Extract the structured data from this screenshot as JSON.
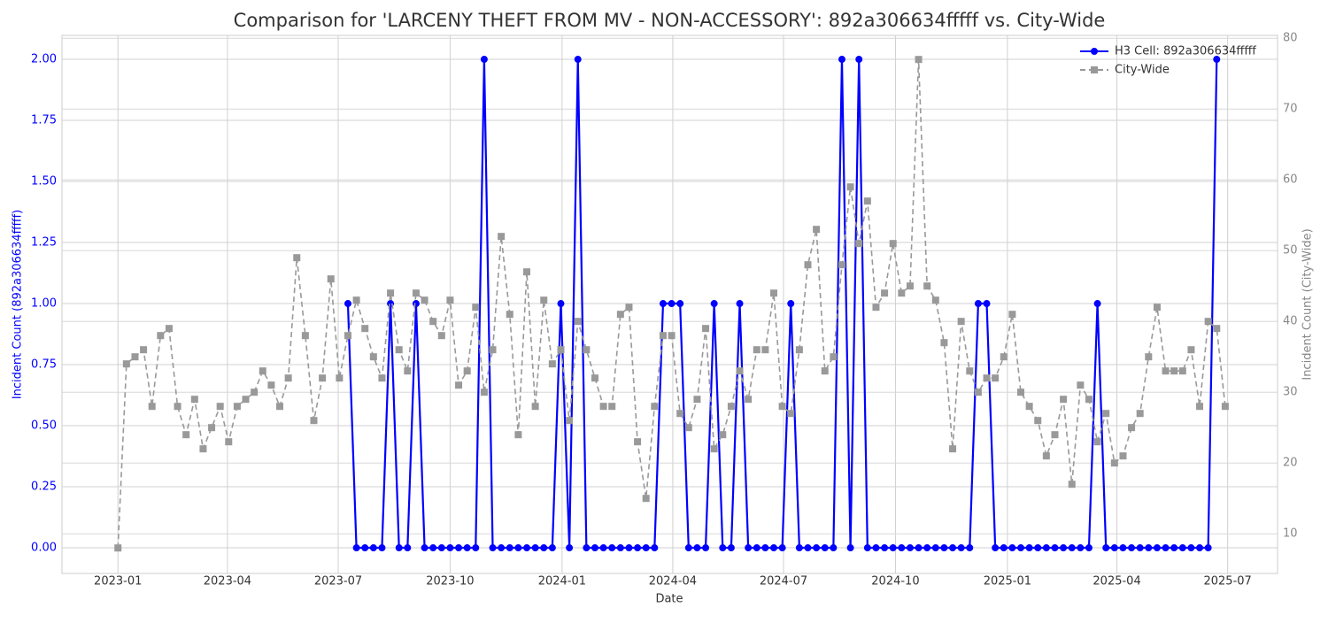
{
  "chart_data": {
    "type": "line",
    "title": "Comparison for 'LARCENY THEFT FROM MV - NON-ACCESSORY': 892a306634fffff vs. City-Wide",
    "x_label": "Date",
    "y_label": "Incident Count (892a306634fffff)",
    "y2_label": "Incident Count (City-Wide)",
    "x": [
      "2023-01-01",
      "2023-01-08",
      "2023-01-15",
      "2023-01-22",
      "2023-01-29",
      "2023-02-05",
      "2023-02-12",
      "2023-02-19",
      "2023-02-26",
      "2023-03-05",
      "2023-03-12",
      "2023-03-19",
      "2023-03-26",
      "2023-04-02",
      "2023-04-09",
      "2023-04-16",
      "2023-04-23",
      "2023-04-30",
      "2023-05-07",
      "2023-05-14",
      "2023-05-21",
      "2023-05-28",
      "2023-06-04",
      "2023-06-11",
      "2023-06-18",
      "2023-06-25",
      "2023-07-02",
      "2023-07-09",
      "2023-07-16",
      "2023-07-23",
      "2023-07-30",
      "2023-08-06",
      "2023-08-13",
      "2023-08-20",
      "2023-08-27",
      "2023-09-03",
      "2023-09-10",
      "2023-09-17",
      "2023-09-24",
      "2023-10-01",
      "2023-10-08",
      "2023-10-15",
      "2023-10-22",
      "2023-10-29",
      "2023-11-05",
      "2023-11-12",
      "2023-11-19",
      "2023-11-26",
      "2023-12-03",
      "2023-12-10",
      "2023-12-17",
      "2023-12-24",
      "2023-12-31",
      "2024-01-07",
      "2024-01-14",
      "2024-01-21",
      "2024-01-28",
      "2024-02-04",
      "2024-02-11",
      "2024-02-18",
      "2024-02-25",
      "2024-03-03",
      "2024-03-10",
      "2024-03-17",
      "2024-03-24",
      "2024-03-31",
      "2024-04-07",
      "2024-04-14",
      "2024-04-21",
      "2024-04-28",
      "2024-05-05",
      "2024-05-12",
      "2024-05-19",
      "2024-05-26",
      "2024-06-02",
      "2024-06-09",
      "2024-06-16",
      "2024-06-23",
      "2024-06-30",
      "2024-07-07",
      "2024-07-14",
      "2024-07-21",
      "2024-07-28",
      "2024-08-04",
      "2024-08-11",
      "2024-08-18",
      "2024-08-25",
      "2024-09-01",
      "2024-09-08",
      "2024-09-15",
      "2024-09-22",
      "2024-09-29",
      "2024-10-06",
      "2024-10-13",
      "2024-10-20",
      "2024-10-27",
      "2024-11-03",
      "2024-11-10",
      "2024-11-17",
      "2024-11-24",
      "2024-12-01",
      "2024-12-08",
      "2024-12-15",
      "2024-12-22",
      "2024-12-29",
      "2025-01-05",
      "2025-01-12",
      "2025-01-19",
      "2025-01-26",
      "2025-02-02",
      "2025-02-09",
      "2025-02-16",
      "2025-02-23",
      "2025-03-02",
      "2025-03-09",
      "2025-03-16",
      "2025-03-23",
      "2025-03-30",
      "2025-04-06",
      "2025-04-13",
      "2025-04-20",
      "2025-04-27",
      "2025-05-04",
      "2025-05-11",
      "2025-05-18",
      "2025-05-25",
      "2025-06-01",
      "2025-06-08",
      "2025-06-15",
      "2025-06-22",
      "2025-06-29"
    ],
    "series": [
      {
        "name": "H3 Cell: 892a306634fffff",
        "color": "#0000ff",
        "style": "solid",
        "marker": "circle",
        "values": [
          null,
          null,
          null,
          null,
          null,
          null,
          null,
          null,
          null,
          null,
          null,
          null,
          null,
          null,
          null,
          null,
          null,
          null,
          null,
          null,
          null,
          null,
          null,
          null,
          null,
          null,
          null,
          1,
          0,
          0,
          0,
          0,
          1,
          0,
          0,
          1,
          0,
          0,
          0,
          0,
          0,
          0,
          0,
          2,
          0,
          0,
          0,
          0,
          0,
          0,
          0,
          0,
          1,
          0,
          2,
          0,
          0,
          0,
          0,
          0,
          0,
          0,
          0,
          0,
          1,
          1,
          1,
          0,
          0,
          0,
          1,
          0,
          0,
          1,
          0,
          0,
          0,
          0,
          0,
          1,
          0,
          0,
          0,
          0,
          0,
          2,
          0,
          2,
          0,
          0,
          0,
          0,
          0,
          0,
          0,
          0,
          0,
          0,
          0,
          0,
          0,
          1,
          1,
          0,
          0,
          0,
          0,
          0,
          0,
          0,
          0,
          0,
          0,
          0,
          0,
          1,
          0,
          0,
          0,
          0,
          0,
          0,
          0,
          0,
          0,
          0,
          0,
          0,
          0,
          2,
          null
        ]
      },
      {
        "name": "City-Wide",
        "color": "#999999",
        "style": "dashed",
        "marker": "square",
        "axis": "y2",
        "values": [
          8,
          34,
          35,
          36,
          28,
          38,
          39,
          28,
          24,
          29,
          22,
          25,
          28,
          23,
          28,
          29,
          30,
          33,
          31,
          28,
          32,
          49,
          38,
          26,
          32,
          46,
          32,
          38,
          43,
          39,
          35,
          32,
          44,
          36,
          33,
          44,
          43,
          40,
          38,
          43,
          31,
          33,
          42,
          30,
          36,
          52,
          41,
          24,
          47,
          28,
          43,
          34,
          36,
          26,
          40,
          36,
          32,
          28,
          28,
          41,
          42,
          23,
          15,
          28,
          38,
          38,
          27,
          25,
          29,
          39,
          22,
          24,
          28,
          33,
          29,
          36,
          36,
          44,
          28,
          27,
          36,
          48,
          53,
          33,
          35,
          48,
          59,
          51,
          57,
          42,
          44,
          51,
          44,
          45,
          77,
          45,
          43,
          37,
          22,
          40,
          33,
          30,
          32,
          32,
          35,
          41,
          30,
          28,
          26,
          21,
          24,
          29,
          17,
          31,
          29,
          23,
          27,
          20,
          21,
          25,
          27,
          35,
          42,
          33,
          33,
          33,
          36,
          28,
          40,
          39,
          28
        ]
      }
    ],
    "xlim": [
      "2022-11-16",
      "2025-08-11"
    ],
    "xticks": [
      {
        "value": "2023-01-01",
        "label": "2023-01"
      },
      {
        "value": "2023-04-01",
        "label": "2023-04"
      },
      {
        "value": "2023-07-01",
        "label": "2023-07"
      },
      {
        "value": "2023-10-01",
        "label": "2023-10"
      },
      {
        "value": "2024-01-01",
        "label": "2024-01"
      },
      {
        "value": "2024-04-01",
        "label": "2024-04"
      },
      {
        "value": "2024-07-01",
        "label": "2024-07"
      },
      {
        "value": "2024-10-01",
        "label": "2024-10"
      },
      {
        "value": "2025-01-01",
        "label": "2025-01"
      },
      {
        "value": "2025-04-01",
        "label": "2025-04"
      },
      {
        "value": "2025-07-01",
        "label": "2025-07"
      }
    ],
    "ylim": [
      -0.105,
      2.098
    ],
    "yticks": [
      {
        "value": 0,
        "label": "0.00"
      },
      {
        "value": 0.25,
        "label": "0.25"
      },
      {
        "value": 0.5,
        "label": "0.50"
      },
      {
        "value": 0.75,
        "label": "0.75"
      },
      {
        "value": 1,
        "label": "1.00"
      },
      {
        "value": 1.25,
        "label": "1.25"
      },
      {
        "value": 1.5,
        "label": "1.50"
      },
      {
        "value": 1.75,
        "label": "1.75"
      },
      {
        "value": 2,
        "label": "2.00"
      }
    ],
    "y2lim": [
      4.4,
      80.4
    ],
    "y2ticks": [
      10,
      20,
      30,
      40,
      50,
      60,
      70,
      80
    ],
    "grid": true,
    "legend": "upper right"
  }
}
